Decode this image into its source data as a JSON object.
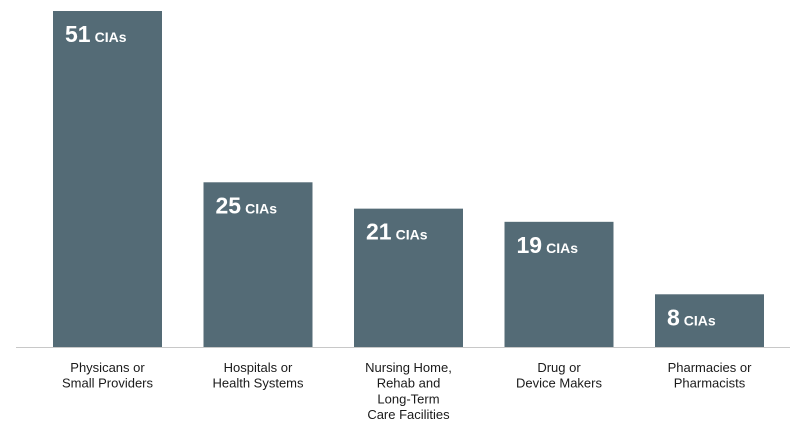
{
  "chart_data": {
    "type": "bar",
    "categories": [
      [
        "Physicans or",
        "Small Providers"
      ],
      [
        "Hospitals or",
        "Health Systems"
      ],
      [
        "Nursing Home,",
        "Rehab and",
        "Long-Term",
        "Care Facilities"
      ],
      [
        "Drug or",
        "Device Makers"
      ],
      [
        "Pharmacies or",
        "Pharmacists"
      ]
    ],
    "values": [
      51,
      25,
      21,
      19,
      8
    ],
    "value_unit": "CIAs",
    "ylim": [
      0,
      51
    ],
    "grid": false,
    "legend": "none",
    "colors": {
      "bar": "#546b76",
      "label": "#ffffff",
      "baseline": "#c8c8c8"
    }
  }
}
